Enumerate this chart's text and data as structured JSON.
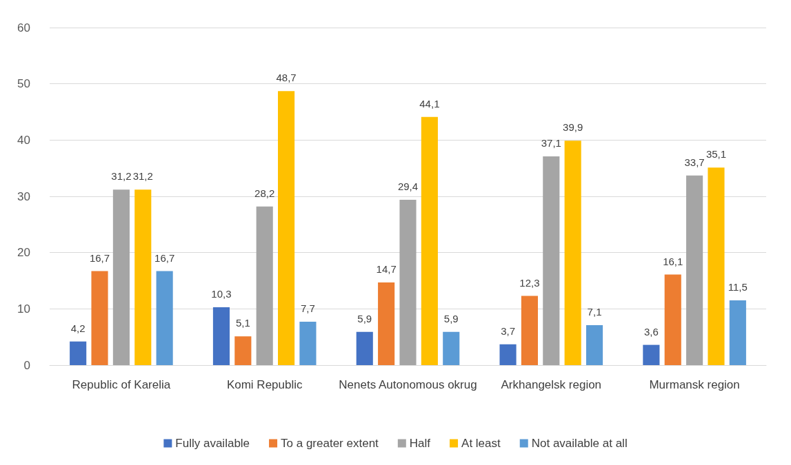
{
  "chart_data": {
    "type": "bar",
    "categories": [
      "Republic of Karelia",
      "Komi Republic",
      "Nenets Autonomous okrug",
      "Arkhangelsk region",
      "Murmansk region"
    ],
    "series": [
      {
        "name": "Fully available",
        "color": "#4472c4",
        "values": [
          4.2,
          10.3,
          5.9,
          3.7,
          3.6
        ],
        "value_labels": [
          "4,2",
          "10,3",
          "5,9",
          "3,7",
          "3,6"
        ]
      },
      {
        "name": "To a greater extent",
        "color": "#ed7d31",
        "values": [
          16.7,
          5.1,
          14.7,
          12.3,
          16.1
        ],
        "value_labels": [
          "16,7",
          "5,1",
          "14,7",
          "12,3",
          "16,1"
        ]
      },
      {
        "name": "Half",
        "color": "#a5a5a5",
        "values": [
          31.2,
          28.2,
          29.4,
          37.1,
          33.7
        ],
        "value_labels": [
          "31,2",
          "28,2",
          "29,4",
          "37,1",
          "33,7"
        ]
      },
      {
        "name": "At least",
        "color": "#ffc000",
        "values": [
          31.2,
          48.7,
          44.1,
          39.9,
          35.1
        ],
        "value_labels": [
          "31,2",
          "48,7",
          "44,1",
          "39,9",
          "35,1"
        ]
      },
      {
        "name": "Not available at all",
        "color": "#5b9bd5",
        "values": [
          16.7,
          7.7,
          5.9,
          7.1,
          11.5
        ],
        "value_labels": [
          "16,7",
          "7,7",
          "5,9",
          "7,1",
          "11,5"
        ]
      }
    ],
    "ylim": [
      0,
      60
    ],
    "yticks": [
      0,
      10,
      20,
      30,
      40,
      50,
      60
    ],
    "grid": "y",
    "legend": "bottom"
  }
}
